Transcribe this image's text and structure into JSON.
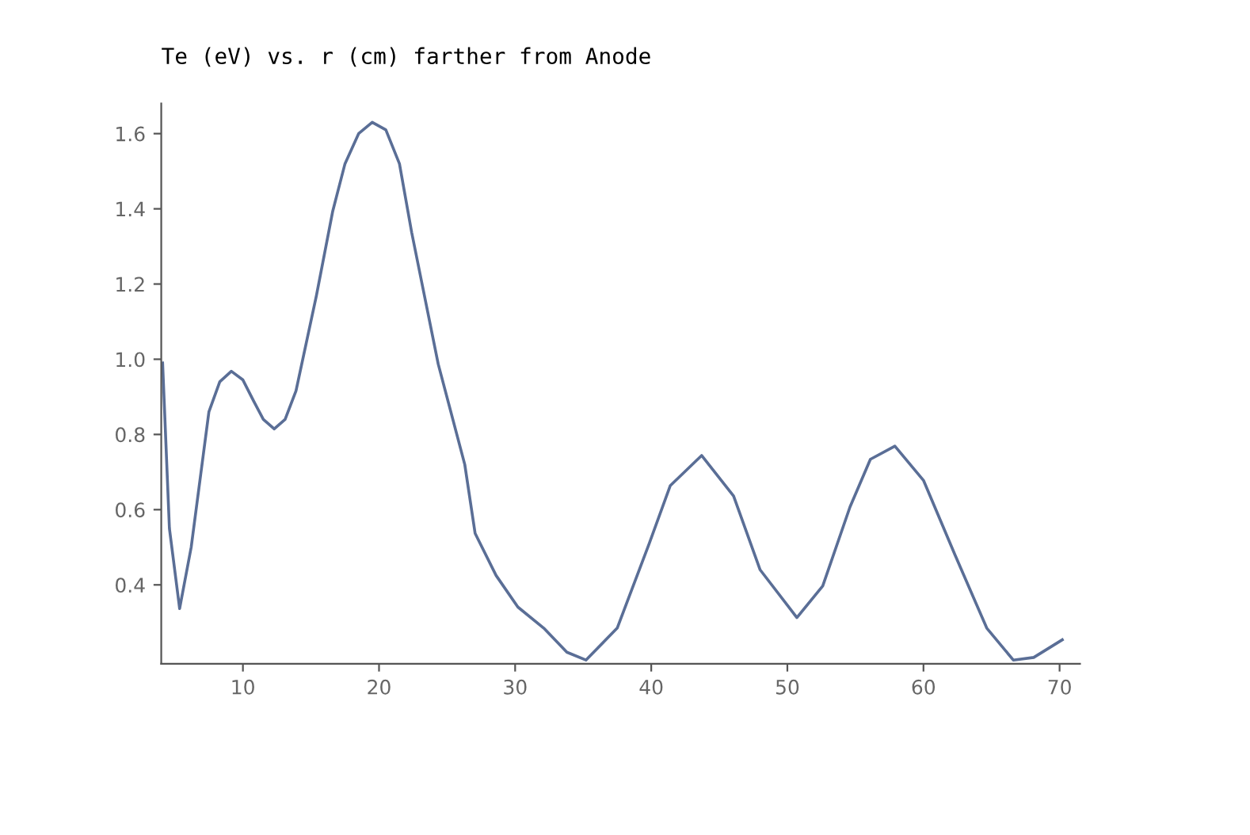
{
  "chart_data": {
    "type": "line",
    "title": "Te (eV) vs. r (cm) farther from Anode",
    "x": [
      4.1,
      4.6,
      5.35,
      6.2,
      7.5,
      8.3,
      9.15,
      10.0,
      10.8,
      11.5,
      12.3,
      13.1,
      13.9,
      15.4,
      16.6,
      17.5,
      18.5,
      19.5,
      20.5,
      21.5,
      22.4,
      24.35,
      26.3,
      27.06,
      28.6,
      30.2,
      32.1,
      33.8,
      35.2,
      37.5,
      39.85,
      41.4,
      43.7,
      46.05,
      48.0,
      50.7,
      52.6,
      54.6,
      56.1,
      57.9,
      60.0,
      62.3,
      64.65,
      66.6,
      68.1,
      70.2
    ],
    "series": [
      {
        "color": "#5a6e96",
        "values": [
          0.99,
          0.55,
          0.337,
          0.5,
          0.86,
          0.94,
          0.968,
          0.945,
          0.888,
          0.84,
          0.815,
          0.84,
          0.916,
          1.169,
          1.394,
          1.52,
          1.6,
          1.63,
          1.61,
          1.52,
          1.337,
          0.987,
          0.72,
          0.537,
          0.425,
          0.341,
          0.285,
          0.221,
          0.2,
          0.285,
          0.51,
          0.664,
          0.744,
          0.636,
          0.44,
          0.313,
          0.397,
          0.607,
          0.734,
          0.769,
          0.678,
          0.481,
          0.285,
          0.2,
          0.207,
          0.254
        ]
      }
    ],
    "xlim": [
      4,
      71.5
    ],
    "ylim": [
      0.19,
      1.68
    ],
    "xticks": [
      10,
      20,
      30,
      40,
      50,
      60,
      70
    ],
    "yticks": [
      0.4,
      0.6,
      0.8,
      {
        "value": 1.0,
        "label": "1.0"
      },
      1.2,
      1.4,
      1.6
    ],
    "grid": false,
    "marker": "none",
    "line_style": "solid"
  }
}
